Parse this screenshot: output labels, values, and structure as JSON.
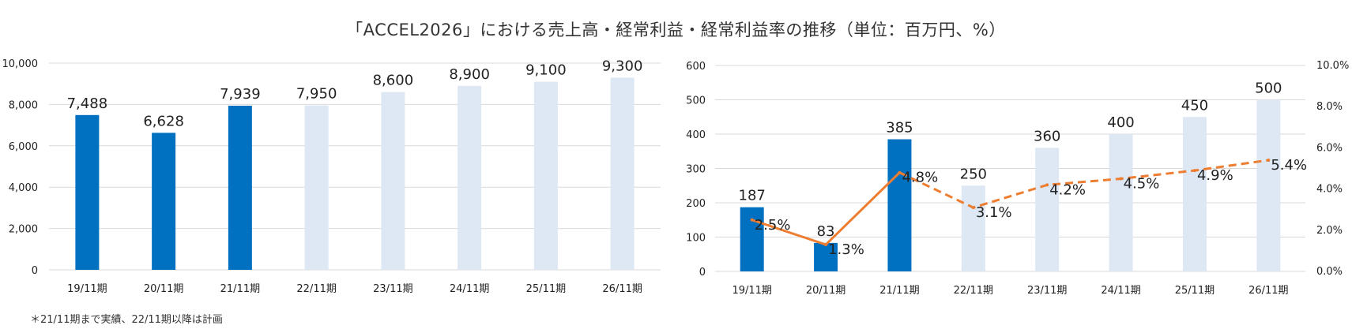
{
  "title": "「ACCEL2026」における売上高・経常利益・経常利益率の推移（単位：百万円、%）",
  "footnote": "＊21/11期まで実績、22/11期以降は計画",
  "colors": {
    "actual": "#0070C0",
    "plan": "#DDE8F4",
    "line": "#ED7D31",
    "grid": "#D9D9D9"
  },
  "chart_data": [
    {
      "type": "bar",
      "categories": [
        "19/11期",
        "20/11期",
        "21/11期",
        "22/11期",
        "23/11期",
        "24/11期",
        "25/11期",
        "26/11期"
      ],
      "values": [
        7488,
        6628,
        7939,
        7950,
        8600,
        8900,
        9100,
        9300
      ],
      "value_labels": [
        "7,488",
        "6,628",
        "7,939",
        "7,950",
        "8,600",
        "8,900",
        "9,100",
        "9,300"
      ],
      "actual_count": 3,
      "ylim": [
        0,
        10000
      ],
      "yticks": [
        0,
        2000,
        4000,
        6000,
        8000,
        10000
      ],
      "ytick_labels": [
        "0",
        "2,000",
        "4,000",
        "6,000",
        "8,000",
        "10,000"
      ],
      "grid": true
    },
    {
      "type": "bar+line",
      "categories": [
        "19/11期",
        "20/11期",
        "21/11期",
        "22/11期",
        "23/11期",
        "24/11期",
        "25/11期",
        "26/11期"
      ],
      "bar_values": [
        187,
        83,
        385,
        250,
        360,
        400,
        450,
        500
      ],
      "bar_labels": [
        "187",
        "83",
        "385",
        "250",
        "360",
        "400",
        "450",
        "500"
      ],
      "line_values": [
        2.5,
        1.3,
        4.8,
        3.1,
        4.2,
        4.5,
        4.9,
        5.4
      ],
      "line_labels": [
        "2.5%",
        "1.3%",
        "4.8%",
        "3.1%",
        "4.2%",
        "4.5%",
        "4.9%",
        "5.4%"
      ],
      "actual_count": 3,
      "ylim": [
        0,
        600
      ],
      "yticks": [
        0,
        100,
        200,
        300,
        400,
        500,
        600
      ],
      "ytick_labels": [
        "0",
        "100",
        "200",
        "300",
        "400",
        "500",
        "600"
      ],
      "y2lim": [
        0,
        10
      ],
      "y2ticks": [
        0,
        2,
        4,
        6,
        8,
        10
      ],
      "y2tick_labels": [
        "0.0%",
        "2.0%",
        "4.0%",
        "6.0%",
        "8.0%",
        "10.0%"
      ],
      "grid": true
    }
  ]
}
